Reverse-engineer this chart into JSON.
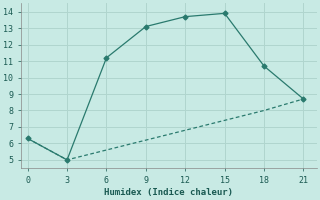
{
  "line1_x": [
    0,
    3,
    6,
    9,
    12,
    15,
    18,
    21
  ],
  "line1_y": [
    6.3,
    5.0,
    11.2,
    13.1,
    13.7,
    13.9,
    10.7,
    8.7
  ],
  "line2_x": [
    0,
    3,
    6,
    9,
    12,
    15,
    18,
    21
  ],
  "line2_y": [
    6.3,
    5.0,
    5.6,
    6.2,
    6.8,
    7.4,
    8.0,
    8.7
  ],
  "color": "#2a7a6e",
  "xlabel": "Humidex (Indice chaleur)",
  "xlim": [
    -0.5,
    22
  ],
  "ylim": [
    4.5,
    14.5
  ],
  "xticks": [
    0,
    3,
    6,
    9,
    12,
    15,
    18,
    21
  ],
  "yticks": [
    5,
    6,
    7,
    8,
    9,
    10,
    11,
    12,
    13,
    14
  ],
  "background_color": "#c8eae4",
  "grid_color": "#b0d5ce"
}
